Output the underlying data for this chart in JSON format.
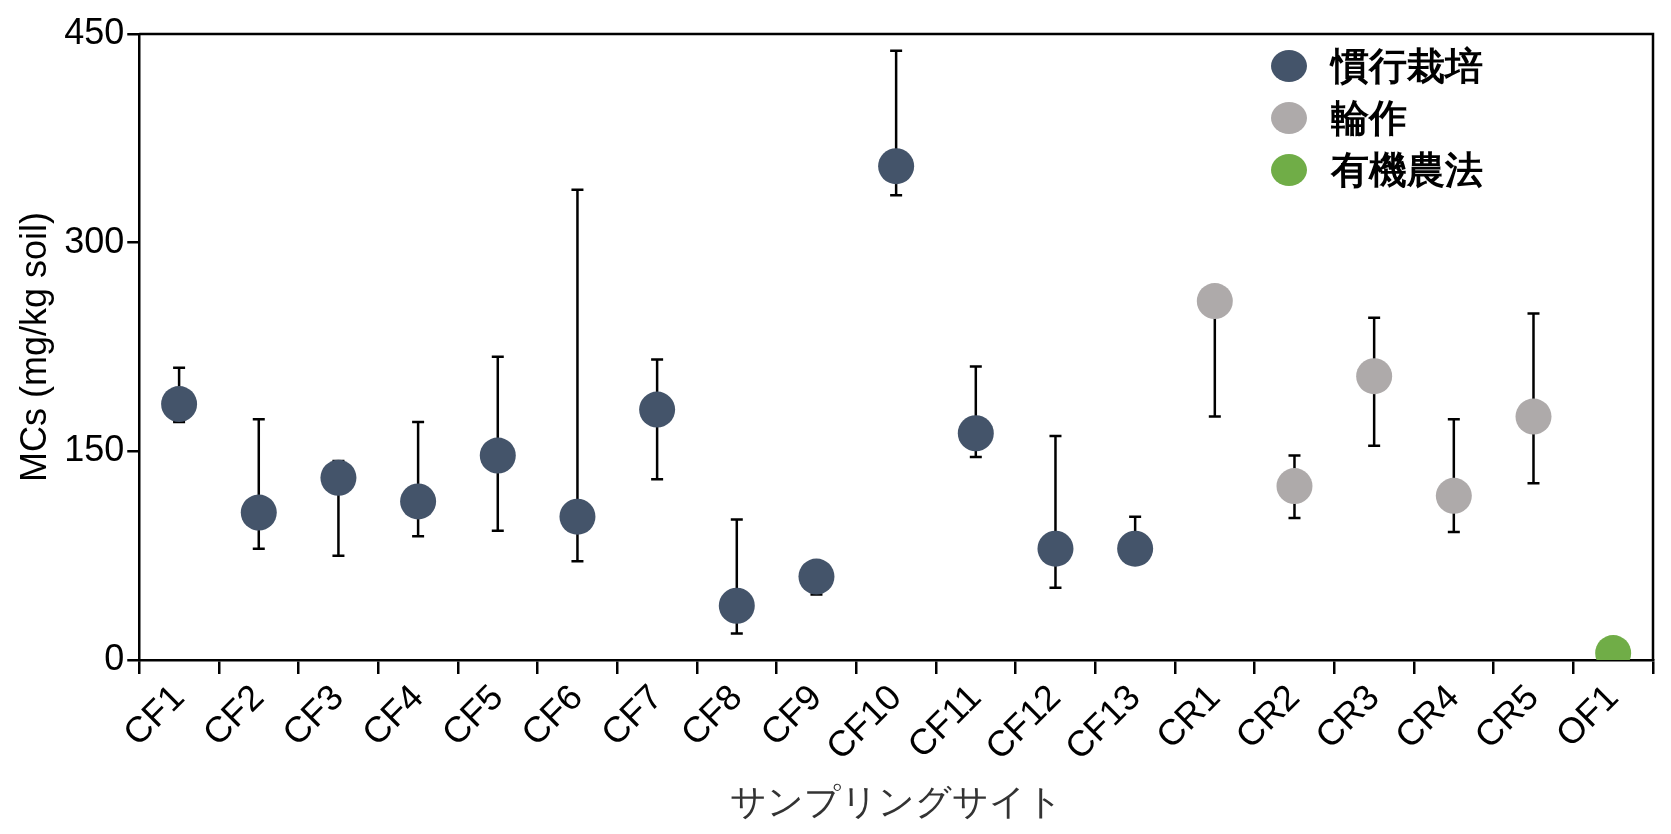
{
  "chart_data": {
    "type": "scatter",
    "xlabel": "サンプリングサイト",
    "ylabel": "MCs (mg/kg soil)",
    "categories": [
      "CF1",
      "CF2",
      "CF3",
      "CF4",
      "CF5",
      "CF6",
      "CF7",
      "CF8",
      "CF9",
      "CF10",
      "CF11",
      "CF12",
      "CF13",
      "CR1",
      "CR2",
      "CR3",
      "CR4",
      "CR5",
      "OF1"
    ],
    "series": [
      {
        "name": "慣行栽培",
        "color": "#44546a",
        "values": [
          184,
          106,
          131,
          114,
          147,
          103,
          180,
          39,
          60,
          355,
          163,
          80,
          80,
          null,
          null,
          null,
          null,
          null,
          null
        ],
        "errors": [
          [
            171,
            210
          ],
          [
            80,
            173
          ],
          [
            75,
            143
          ],
          [
            89,
            171
          ],
          [
            93,
            218
          ],
          [
            71,
            338
          ],
          [
            130,
            216
          ],
          [
            19,
            101
          ],
          [
            47,
            60
          ],
          [
            334,
            438
          ],
          [
            146,
            211
          ],
          [
            52,
            161
          ],
          [
            80,
            103
          ],
          null,
          null,
          null,
          null,
          null,
          null
        ]
      },
      {
        "name": "輪作",
        "color": "#aeaaaa",
        "values": [
          null,
          null,
          null,
          null,
          null,
          null,
          null,
          null,
          null,
          null,
          null,
          null,
          null,
          258,
          125,
          204,
          118,
          175,
          null
        ],
        "errors": [
          null,
          null,
          null,
          null,
          null,
          null,
          null,
          null,
          null,
          null,
          null,
          null,
          null,
          [
            175,
            258
          ],
          [
            102,
            147
          ],
          [
            154,
            246
          ],
          [
            92,
            173
          ],
          [
            127,
            249
          ],
          null
        ]
      },
      {
        "name": "有機農法",
        "color": "#70ad47",
        "values": [
          null,
          null,
          null,
          null,
          null,
          null,
          null,
          null,
          null,
          null,
          null,
          null,
          null,
          null,
          null,
          null,
          null,
          null,
          5
        ]
      }
    ],
    "ylim": [
      0,
      450
    ],
    "yticks": [
      0,
      150,
      300,
      450
    ],
    "grid": false,
    "legend": "top right",
    "marker": "circle"
  }
}
